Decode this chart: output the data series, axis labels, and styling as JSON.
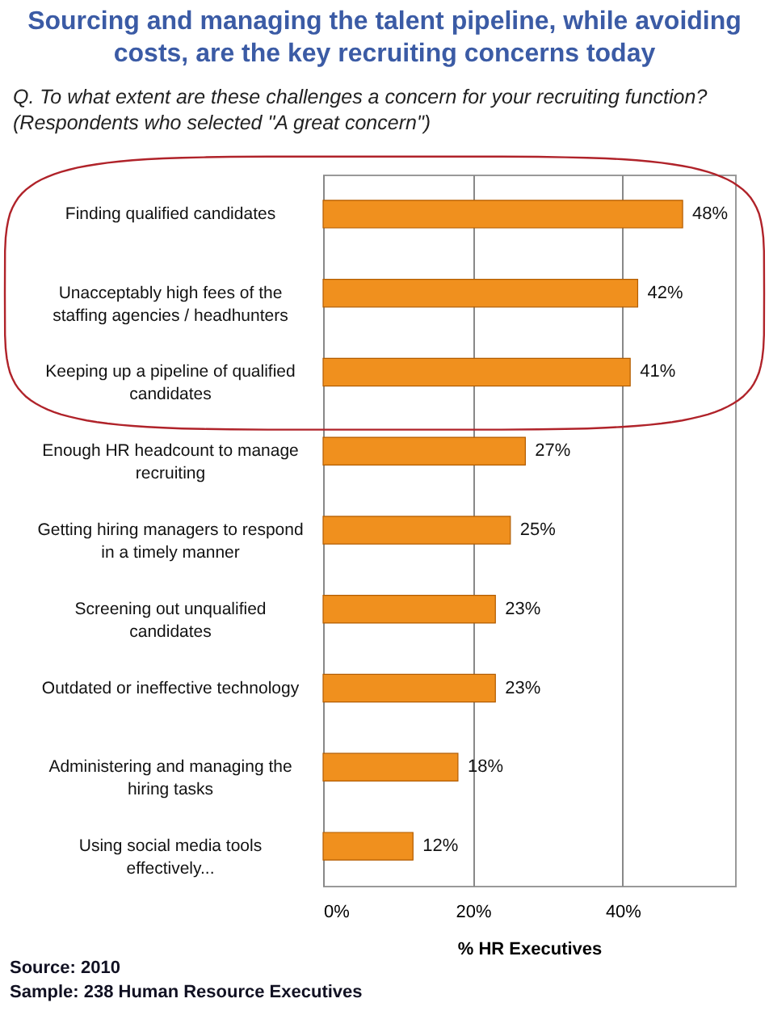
{
  "chart_data": {
    "type": "bar",
    "orientation": "horizontal",
    "title": "Sourcing and managing the talent pipeline, while avoiding costs, are the key recruiting concerns today",
    "subtitle": "Q. To what extent are these challenges a concern for your recruiting function? (Respondents who selected \"A great concern\")",
    "xlabel": "% HR Executives",
    "categories": [
      "Finding qualified candidates",
      "Unacceptably high fees of the staffing agencies / headhunters",
      "Keeping up a pipeline of qualified candidates",
      "Enough HR headcount to manage recruiting",
      "Getting hiring managers to respond in a timely manner",
      "Screening out unqualified candidates",
      "Outdated or ineffective technology",
      "Administering and managing the hiring tasks",
      "Using social media tools effectively..."
    ],
    "values": [
      48,
      42,
      41,
      27,
      25,
      23,
      23,
      18,
      12
    ],
    "value_labels": [
      "48%",
      "42%",
      "41%",
      "27%",
      "25%",
      "23%",
      "23%",
      "18%",
      "12%"
    ],
    "color": "#f0901e",
    "xlim": [
      0,
      55
    ],
    "xticks": [
      {
        "value": 0,
        "label": "0%"
      },
      {
        "value": 20,
        "label": "20%"
      },
      {
        "value": 40,
        "label": "40%"
      }
    ],
    "grid": "x",
    "annotations": [
      "Source: 2010",
      "Sample: 238 Human Resource Executives"
    ]
  }
}
